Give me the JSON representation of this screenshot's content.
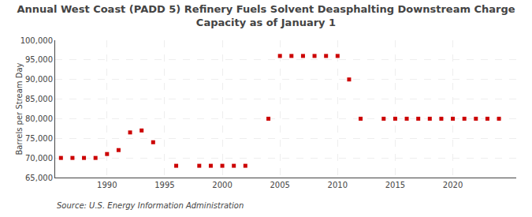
{
  "chart_data": {
    "type": "scatter",
    "title": "Annual West Coast (PADD 5) Refinery Fuels Solvent Deasphalting Downstream Charge\nCapacity as of January 1",
    "ylabel": "Barrels per Stream Day",
    "annotations": [
      "Source: U.S. Energy Information Administration"
    ],
    "color": "#cc0000",
    "marker": "square",
    "grid": true,
    "xlim": [
      1985.5,
      2025.5
    ],
    "ylim": [
      65000,
      100000
    ],
    "xticks": [
      1990,
      1995,
      2000,
      2005,
      2010,
      2015,
      2020
    ],
    "yticks": [
      {
        "value": 65000,
        "label": "65,000"
      },
      {
        "value": 70000,
        "label": "70,000"
      },
      {
        "value": 75000,
        "label": "75,000"
      },
      {
        "value": 80000,
        "label": "80,000"
      },
      {
        "value": 85000,
        "label": "85,000"
      },
      {
        "value": 90000,
        "label": "90,000"
      },
      {
        "value": 95000,
        "label": "95,000"
      },
      {
        "value": 100000,
        "label": "100,000"
      }
    ],
    "x": [
      1986,
      1987,
      1988,
      1989,
      1990,
      1991,
      1992,
      1993,
      1994,
      1996,
      1998,
      1999,
      2000,
      2001,
      2002,
      2004,
      2005,
      2006,
      2007,
      2008,
      2009,
      2010,
      2011,
      2012,
      2014,
      2015,
      2016,
      2017,
      2018,
      2019,
      2020,
      2021,
      2022,
      2023,
      2024
    ],
    "values": [
      70000,
      70000,
      70000,
      70000,
      71000,
      72000,
      76500,
      77000,
      74000,
      68000,
      68000,
      68000,
      68000,
      68000,
      68000,
      80000,
      96000,
      96000,
      96000,
      96000,
      96000,
      96000,
      90000,
      80000,
      80000,
      80000,
      80000,
      80000,
      80000,
      80000,
      80000,
      80000,
      80000,
      80000,
      80000
    ]
  }
}
